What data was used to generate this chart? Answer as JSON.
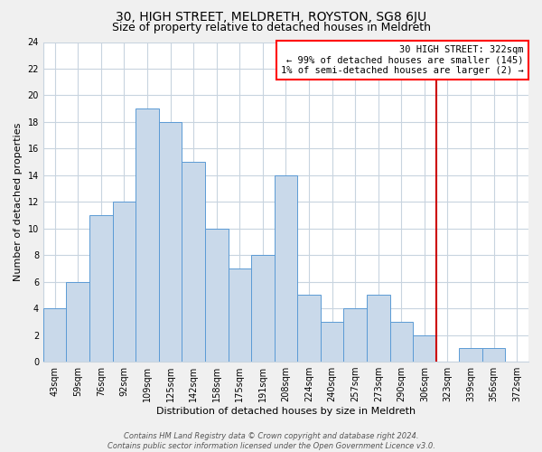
{
  "title": "30, HIGH STREET, MELDRETH, ROYSTON, SG8 6JU",
  "subtitle": "Size of property relative to detached houses in Meldreth",
  "xlabel": "Distribution of detached houses by size in Meldreth",
  "ylabel": "Number of detached properties",
  "footer_lines": [
    "Contains HM Land Registry data © Crown copyright and database right 2024.",
    "Contains public sector information licensed under the Open Government Licence v3.0."
  ],
  "bin_labels": [
    "43sqm",
    "59sqm",
    "76sqm",
    "92sqm",
    "109sqm",
    "125sqm",
    "142sqm",
    "158sqm",
    "175sqm",
    "191sqm",
    "208sqm",
    "224sqm",
    "240sqm",
    "257sqm",
    "273sqm",
    "290sqm",
    "306sqm",
    "323sqm",
    "339sqm",
    "356sqm",
    "372sqm"
  ],
  "bar_heights": [
    4,
    6,
    11,
    12,
    19,
    18,
    15,
    10,
    7,
    8,
    14,
    5,
    3,
    4,
    5,
    3,
    2,
    0,
    1,
    1,
    0
  ],
  "bar_color": "#c9d9ea",
  "bar_edge_color": "#5b9bd5",
  "vline_x": 17,
  "vline_color": "#cc0000",
  "annotation_line1": "30 HIGH STREET: 322sqm",
  "annotation_line2": "← 99% of detached houses are smaller (145)",
  "annotation_line3": "1% of semi-detached houses are larger (2) →",
  "ylim": [
    0,
    24
  ],
  "yticks": [
    0,
    2,
    4,
    6,
    8,
    10,
    12,
    14,
    16,
    18,
    20,
    22,
    24
  ],
  "plot_bg_color": "#ffffff",
  "fig_bg_color": "#f0f0f0",
  "grid_color": "#c8d4df",
  "title_fontsize": 10,
  "subtitle_fontsize": 9,
  "axis_label_fontsize": 8,
  "tick_fontsize": 7,
  "annotation_fontsize": 7.5,
  "footer_fontsize": 6
}
